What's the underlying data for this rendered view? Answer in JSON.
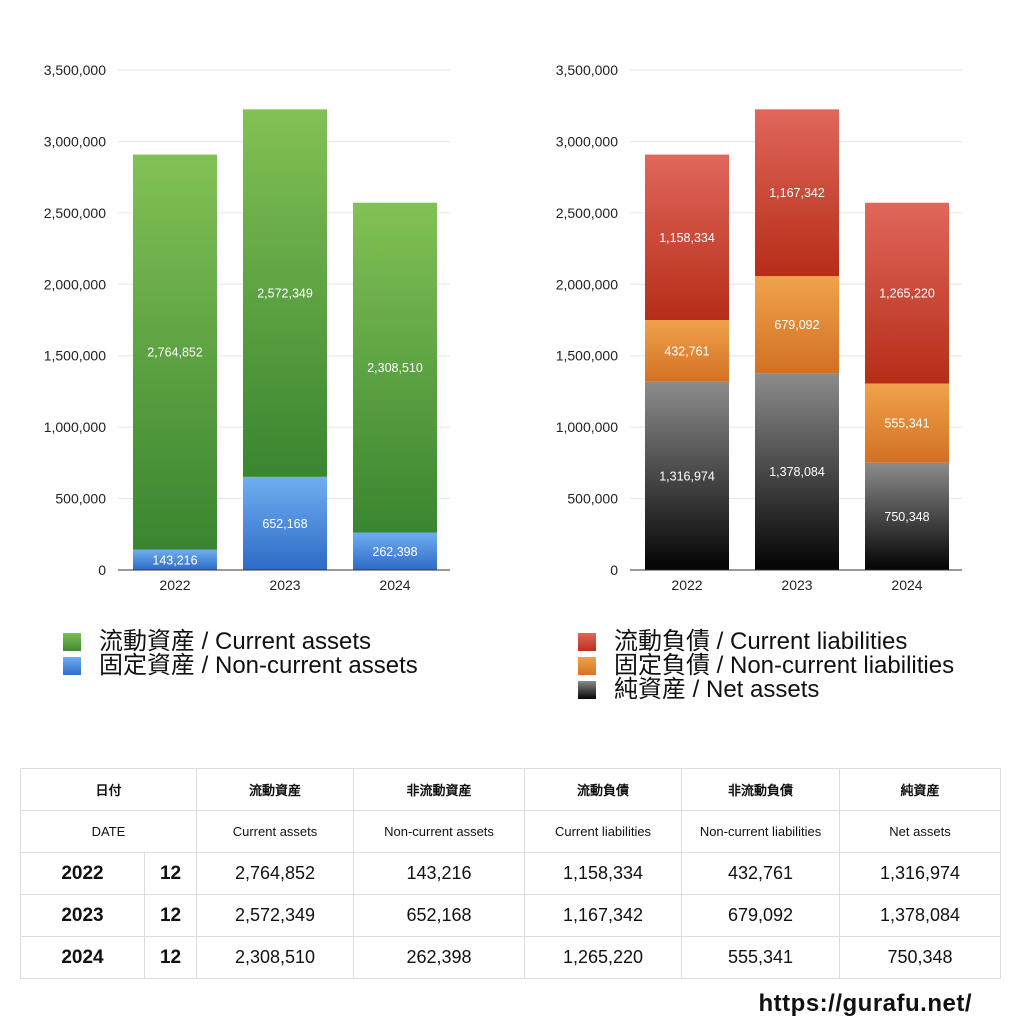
{
  "chart_data": [
    {
      "type": "bar",
      "stacked": true,
      "title": "",
      "xlabel": "",
      "ylabel": "",
      "categories": [
        "2022",
        "2023",
        "2024"
      ],
      "ylim": [
        0,
        3500000
      ],
      "yticks": [
        "0",
        "500,000",
        "1,000,000",
        "1,500,000",
        "2,000,000",
        "2,500,000",
        "3,000,000",
        "3,500,000"
      ],
      "grid": true,
      "series": [
        {
          "name": "固定資産 / Non-current assets",
          "values": [
            143216,
            652168,
            262398
          ],
          "labels": [
            "143,216",
            "652,168",
            "262,398"
          ],
          "color": "#3f7fd6"
        },
        {
          "name": "流動資産 / Current assets",
          "values": [
            2764852,
            2572349,
            2308510
          ],
          "labels": [
            "2,764,852",
            "2,572,349",
            "2,308,510"
          ],
          "color": "#4f9a3e"
        }
      ],
      "legend": [
        {
          "label": "流動資産 / Current assets",
          "color": "#4f9a3e"
        },
        {
          "label": "固定資産 / Non-current assets",
          "color": "#3f7fd6"
        }
      ]
    },
    {
      "type": "bar",
      "stacked": true,
      "title": "",
      "xlabel": "",
      "ylabel": "",
      "categories": [
        "2022",
        "2023",
        "2024"
      ],
      "ylim": [
        0,
        3500000
      ],
      "yticks": [
        "0",
        "500,000",
        "1,000,000",
        "1,500,000",
        "2,000,000",
        "2,500,000",
        "3,000,000",
        "3,500,000"
      ],
      "grid": true,
      "series": [
        {
          "name": "純資産 / Net assets",
          "values": [
            1316974,
            1378084,
            750348
          ],
          "labels": [
            "1,316,974",
            "1,378,084",
            "750,348"
          ],
          "color": "#2a2a2a"
        },
        {
          "name": "固定負債 / Non-current liabilities",
          "values": [
            432761,
            679092,
            555341
          ],
          "labels": [
            "432,761",
            "679,092",
            "555,341"
          ],
          "color": "#e38a33"
        },
        {
          "name": "流動負債 / Current liabilities",
          "values": [
            1158334,
            1167342,
            1265220
          ],
          "labels": [
            "1,158,334",
            "1,167,342",
            "1,265,220"
          ],
          "color": "#cf4632"
        }
      ],
      "legend": [
        {
          "label": "流動負債 / Current liabilities",
          "color": "#cf4632"
        },
        {
          "label": "固定負債 / Non-current liabilities",
          "color": "#e38a33"
        },
        {
          "label": "純資産 / Net assets",
          "color": "#2a2a2a"
        }
      ]
    }
  ],
  "table": {
    "header_ja": [
      "日付",
      "流動資産",
      "非流動資産",
      "流動負債",
      "非流動負債",
      "純資産"
    ],
    "header_en": [
      "DATE",
      "Current assets",
      "Non-current assets",
      "Current liabilities",
      "Non-current liabilities",
      "Net assets"
    ],
    "rows": [
      {
        "year": "2022",
        "month": "12",
        "cells": [
          "2,764,852",
          "143,216",
          "1,158,334",
          "432,761",
          "1,316,974"
        ]
      },
      {
        "year": "2023",
        "month": "12",
        "cells": [
          "2,572,349",
          "652,168",
          "1,167,342",
          "679,092",
          "1,378,084"
        ]
      },
      {
        "year": "2024",
        "month": "12",
        "cells": [
          "2,308,510",
          "262,398",
          "1,265,220",
          "555,341",
          "750,348"
        ]
      }
    ]
  },
  "footer": {
    "url": "https://gurafu.net/"
  }
}
